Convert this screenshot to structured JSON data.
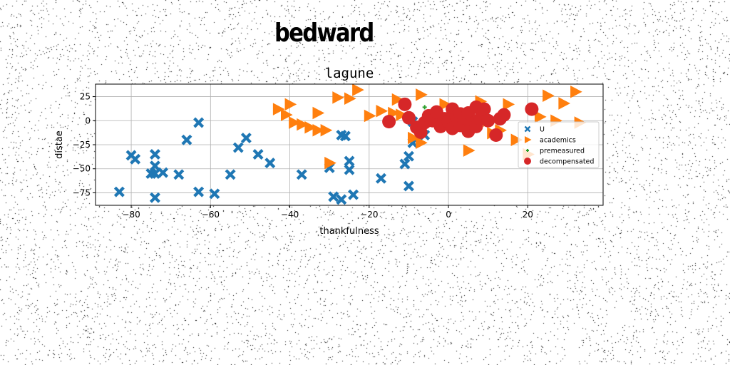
{
  "page": {
    "title": "bedward"
  },
  "chart_data": {
    "type": "scatter",
    "title": "lagune",
    "xlabel": "thankfulness",
    "ylabel": "distae",
    "xlim": [
      -89,
      39
    ],
    "ylim": [
      -88,
      38
    ],
    "xticks": [
      -80,
      -60,
      -40,
      -20,
      0,
      20
    ],
    "yticks": [
      25,
      0,
      -25,
      -50,
      -75
    ],
    "grid": true,
    "legend": "right",
    "series": [
      {
        "name": "U",
        "color": "#1f77b4",
        "marker": "x",
        "x": [
          -83,
          -80,
          -79,
          -75,
          -74,
          -74,
          -74,
          -74,
          -72,
          -68,
          -66,
          -63,
          -63,
          -59,
          -55,
          -53,
          -51,
          -48,
          -45,
          -37,
          -30,
          -29,
          -27,
          -27,
          -26,
          -25,
          -25,
          -24,
          -17,
          -11,
          -10,
          -10,
          -9,
          -9,
          -6
        ],
        "y": [
          -74,
          -36,
          -40,
          -55,
          -80,
          -47,
          -55,
          -35,
          -54,
          -56,
          -20,
          -2,
          -74,
          -76,
          -56,
          -28,
          -18,
          -35,
          -44,
          -56,
          -49,
          -79,
          -82,
          -15,
          -16,
          -42,
          -51,
          -77,
          -60,
          -45,
          -68,
          -37,
          -23,
          -1,
          -15
        ]
      },
      {
        "name": "academics",
        "color": "#ff7f0e",
        "marker": "triangle",
        "x": [
          -43,
          -41,
          -40,
          -39,
          -37,
          -35,
          -33,
          -33,
          -31,
          -30,
          -28,
          -25,
          -23,
          -20,
          -17,
          -14,
          -13,
          -12,
          -9,
          -7,
          -7,
          -3,
          -1,
          2,
          5,
          8,
          10,
          11,
          13,
          15,
          17,
          20,
          23,
          25,
          27,
          29,
          32,
          33
        ],
        "y": [
          12,
          6,
          17,
          -2,
          -4,
          -7,
          -10,
          8,
          -10,
          -44,
          24,
          23,
          32,
          5,
          10,
          8,
          22,
          6,
          -18,
          27,
          -23,
          2,
          17,
          1,
          -31,
          20,
          0,
          -13,
          -10,
          17,
          -20,
          -35,
          4,
          26,
          0,
          18,
          30,
          -2
        ]
      },
      {
        "name": "premeasured",
        "color": "#2ca02c",
        "marker": "plus",
        "x": [
          -6,
          8
        ],
        "y": [
          14,
          -2
        ]
      },
      {
        "name": "decompensated",
        "color": "#d62728",
        "marker": "circle",
        "x": [
          -15,
          -11,
          -10,
          -8,
          -7,
          -6,
          -5,
          -4,
          -3,
          -2,
          -1,
          0,
          1,
          1,
          2,
          3,
          3,
          4,
          4,
          5,
          5,
          6,
          7,
          7,
          8,
          9,
          10,
          12,
          13,
          14,
          21
        ],
        "y": [
          -1,
          17,
          3,
          -7,
          -12,
          -2,
          5,
          0,
          9,
          -6,
          2,
          -1,
          -8,
          12,
          4,
          -5,
          7,
          -1,
          3,
          -11,
          8,
          -3,
          14,
          -6,
          2,
          12,
          0,
          -15,
          2,
          6,
          12
        ]
      }
    ]
  }
}
